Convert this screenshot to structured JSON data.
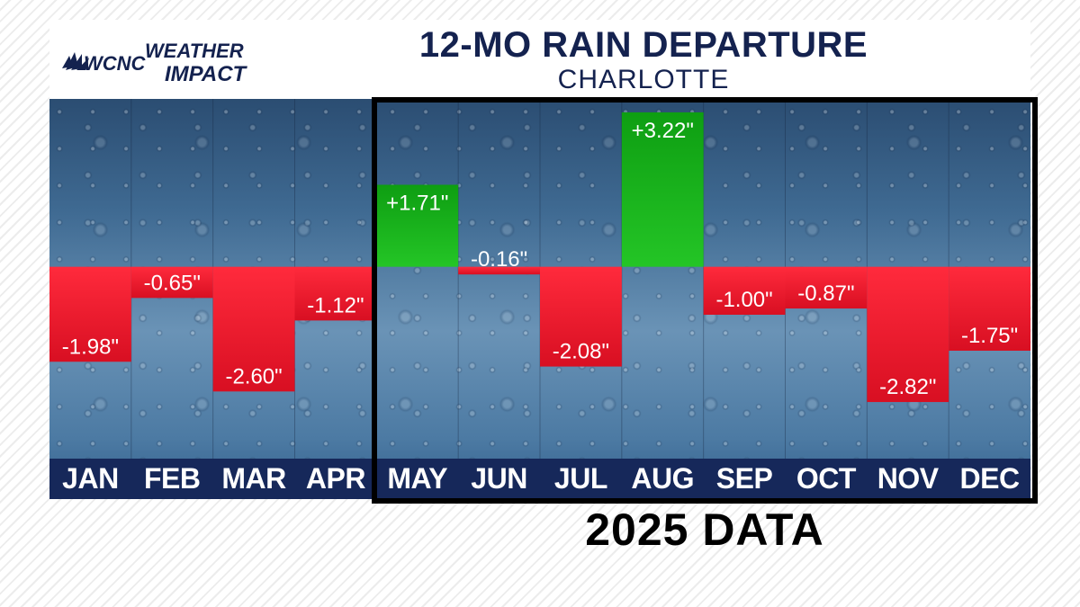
{
  "header": {
    "title": "12-MO RAIN DEPARTURE",
    "subtitle": "CHARLOTTE",
    "logo_station": "WCNC",
    "logo_line1": "WEATHER",
    "logo_line2": "IMPACT"
  },
  "caption": "2025 DATA",
  "colors": {
    "positive": "#18b81a",
    "negative": "#e8162a",
    "axis_band": "#16285a",
    "title": "#14224f"
  },
  "chart_data": {
    "type": "bar",
    "title": "12-MO RAIN DEPARTURE",
    "subtitle": "CHARLOTTE",
    "categories": [
      "JAN",
      "FEB",
      "MAR",
      "APR",
      "MAY",
      "JUN",
      "JUL",
      "AUG",
      "SEP",
      "OCT",
      "NOV",
      "DEC"
    ],
    "values": [
      -1.98,
      -0.65,
      -2.6,
      -1.12,
      1.71,
      -0.16,
      -2.08,
      3.22,
      -1.0,
      -0.87,
      -2.82,
      -1.75
    ],
    "labels": [
      "-1.98\"",
      "-0.65\"",
      "-2.60\"",
      "-1.12\"",
      "+1.71\"",
      "-0.16\"",
      "-2.08\"",
      "+3.22\"",
      "-1.00\"",
      "-0.87\"",
      "-2.82\"",
      "-1.75\""
    ],
    "xlabel": "",
    "ylabel": "",
    "ylim": [
      -4.0,
      3.5
    ],
    "grid": false,
    "highlight_range": [
      "MAY",
      "DEC"
    ],
    "highlight_label": "2025 DATA"
  }
}
